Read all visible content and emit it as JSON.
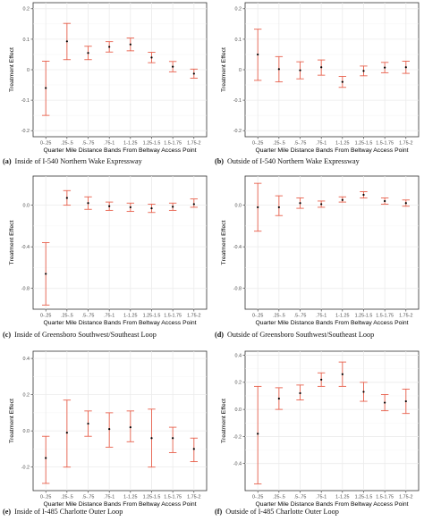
{
  "figure": {
    "x_categories": [
      "0-.25",
      ".25-.5",
      ".5-.75",
      ".75-1",
      "1-1.25",
      "1.25-1.5",
      "1.5-1.75",
      "1.75-2"
    ],
    "xlabel": "Quarter Mile Distance Bands From Beltway Access Point",
    "ylabel": "Treatment Effect",
    "colors": {
      "errorbar": "#e8604c",
      "point": "#000000",
      "panel_bg": "#ffffff",
      "grid": "#ebebeb",
      "frame": "#333333"
    }
  },
  "chart_data": [
    {
      "id": "a",
      "type": "errorbar",
      "caption_letter": "(a)",
      "caption_text": "Inside of I-540 Northern Wake Expressway",
      "ylim": [
        -0.22,
        0.22
      ],
      "yticks": [
        -0.2,
        -0.1,
        0,
        0.1,
        0.2
      ],
      "ytick_labels": [
        "-0.2",
        "-0.1",
        "0",
        "0.1",
        "0.2"
      ],
      "values": [
        -0.06,
        0.093,
        0.055,
        0.075,
        0.083,
        0.04,
        0.01,
        -0.013
      ],
      "lower": [
        -0.15,
        0.033,
        0.033,
        0.058,
        0.062,
        0.023,
        -0.007,
        -0.028
      ],
      "upper": [
        0.028,
        0.152,
        0.077,
        0.092,
        0.104,
        0.057,
        0.027,
        0.002
      ],
      "show_xlabel": true,
      "show_ylabel": true
    },
    {
      "id": "b",
      "type": "errorbar",
      "caption_letter": "(b)",
      "caption_text": "Outside of I-540 Northern Wake Expressway",
      "ylim": [
        -0.22,
        0.22
      ],
      "yticks": [
        -0.2,
        -0.1,
        0,
        0.1,
        0.2
      ],
      "ytick_labels": [
        "-0.2",
        "-0.1",
        "0",
        "0.1",
        "0.2"
      ],
      "values": [
        0.05,
        0.002,
        -0.002,
        0.008,
        -0.04,
        -0.004,
        0.007,
        0.008
      ],
      "lower": [
        -0.035,
        -0.04,
        -0.03,
        -0.018,
        -0.058,
        -0.02,
        -0.01,
        -0.012
      ],
      "upper": [
        0.133,
        0.043,
        0.026,
        0.032,
        -0.022,
        0.012,
        0.024,
        0.028
      ],
      "show_xlabel": true,
      "show_ylabel": true
    },
    {
      "id": "c",
      "type": "errorbar",
      "caption_letter": "(c)",
      "caption_text": "Inside of Greensboro Southwest/Southeast Loop",
      "ylim": [
        -1.0,
        0.28
      ],
      "yticks": [
        -0.8,
        -0.4,
        0
      ],
      "ytick_labels": [
        "-0.8",
        "-0.4",
        "0.0"
      ],
      "values": [
        -0.66,
        0.07,
        0.02,
        -0.01,
        -0.02,
        -0.03,
        -0.015,
        0.01
      ],
      "lower": [
        -0.96,
        0.0,
        -0.04,
        -0.05,
        -0.06,
        -0.07,
        -0.05,
        -0.02
      ],
      "upper": [
        -0.36,
        0.14,
        0.08,
        0.03,
        0.02,
        0.01,
        0.02,
        0.06
      ],
      "show_xlabel": true,
      "show_ylabel": true
    },
    {
      "id": "d",
      "type": "errorbar",
      "caption_letter": "(d)",
      "caption_text": "Outside of Greensboro Southwest/Southeast Loop",
      "ylim": [
        -1.0,
        0.28
      ],
      "yticks": [
        -0.8,
        -0.4,
        0
      ],
      "ytick_labels": [
        "-0.8",
        "-0.4",
        "0.0"
      ],
      "values": [
        -0.02,
        -0.02,
        0.02,
        0.01,
        0.05,
        0.1,
        0.04,
        0.02
      ],
      "lower": [
        -0.25,
        -0.1,
        -0.03,
        -0.02,
        0.03,
        0.07,
        0.01,
        -0.01
      ],
      "upper": [
        0.21,
        0.09,
        0.07,
        0.04,
        0.08,
        0.13,
        0.07,
        0.05
      ],
      "show_xlabel": true,
      "show_ylabel": true
    },
    {
      "id": "e",
      "type": "errorbar",
      "caption_letter": "(e)",
      "caption_text": "Inside of I-485 Charlotte Outer Loop",
      "ylim": [
        -0.33,
        0.44
      ],
      "yticks": [
        -0.2,
        0,
        0.2,
        0.4
      ],
      "ytick_labels": [
        "-0.2",
        "0.0",
        "0.2",
        "0.4"
      ],
      "values": [
        -0.15,
        -0.01,
        0.04,
        0.01,
        0.02,
        -0.04,
        -0.04,
        -0.1
      ],
      "lower": [
        -0.29,
        -0.2,
        -0.03,
        -0.09,
        -0.06,
        -0.2,
        -0.12,
        -0.17
      ],
      "upper": [
        -0.03,
        0.17,
        0.11,
        0.1,
        0.11,
        0.12,
        0.02,
        -0.04
      ],
      "show_xlabel": true,
      "show_ylabel": true
    },
    {
      "id": "f",
      "type": "errorbar",
      "caption_letter": "(f)",
      "caption_text": "Outside of I-485 Charlotte Outer Loop",
      "ylim": [
        -0.6,
        0.43
      ],
      "yticks": [
        -0.4,
        -0.2,
        0,
        0.2,
        0.4
      ],
      "ytick_labels": [
        "-0.4",
        "-0.2",
        "0.0",
        "0.2",
        "0.4"
      ],
      "values": [
        -0.18,
        0.08,
        0.12,
        0.22,
        0.26,
        0.13,
        0.05,
        0.06
      ],
      "lower": [
        -0.55,
        0.0,
        0.07,
        0.17,
        0.17,
        0.06,
        -0.01,
        -0.03
      ],
      "upper": [
        0.17,
        0.16,
        0.18,
        0.27,
        0.35,
        0.2,
        0.11,
        0.15
      ],
      "show_xlabel": true,
      "show_ylabel": true
    }
  ]
}
